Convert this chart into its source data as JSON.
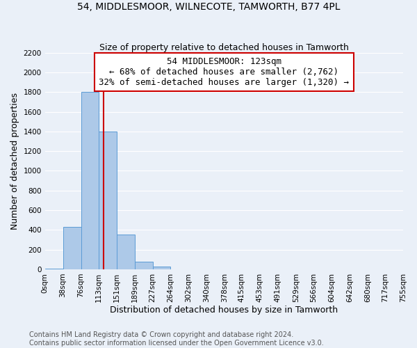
{
  "title": "54, MIDDLESMOOR, WILNECOTE, TAMWORTH, B77 4PL",
  "subtitle": "Size of property relative to detached houses in Tamworth",
  "xlabel": "Distribution of detached houses by size in Tamworth",
  "ylabel": "Number of detached properties",
  "bin_edges": [
    0,
    38,
    76,
    113,
    151,
    189,
    227,
    264,
    302,
    340,
    378,
    415,
    453,
    491,
    529,
    566,
    604,
    642,
    680,
    717,
    755
  ],
  "bar_heights": [
    5,
    430,
    1800,
    1400,
    350,
    75,
    25,
    0,
    0,
    0,
    0,
    0,
    0,
    0,
    0,
    0,
    0,
    0,
    0,
    0
  ],
  "bar_color": "#adc9e8",
  "bar_edge_color": "#5b9bd5",
  "property_size": 123,
  "vline_color": "#cc0000",
  "annotation_text": "54 MIDDLESMOOR: 123sqm\n← 68% of detached houses are smaller (2,762)\n32% of semi-detached houses are larger (1,320) →",
  "annotation_box_color": "#ffffff",
  "annotation_box_edge": "#cc0000",
  "ylim": [
    0,
    2200
  ],
  "yticks": [
    0,
    200,
    400,
    600,
    800,
    1000,
    1200,
    1400,
    1600,
    1800,
    2000,
    2200
  ],
  "tick_labels": [
    "0sqm",
    "38sqm",
    "76sqm",
    "113sqm",
    "151sqm",
    "189sqm",
    "227sqm",
    "264sqm",
    "302sqm",
    "340sqm",
    "378sqm",
    "415sqm",
    "453sqm",
    "491sqm",
    "529sqm",
    "566sqm",
    "604sqm",
    "642sqm",
    "680sqm",
    "717sqm",
    "755sqm"
  ],
  "footer_line1": "Contains HM Land Registry data © Crown copyright and database right 2024.",
  "footer_line2": "Contains public sector information licensed under the Open Government Licence v3.0.",
  "bg_color": "#eaf0f8",
  "grid_color": "#ffffff",
  "title_fontsize": 10,
  "subtitle_fontsize": 9,
  "axis_label_fontsize": 9,
  "tick_fontsize": 7.5,
  "annotation_fontsize": 9,
  "footer_fontsize": 7
}
